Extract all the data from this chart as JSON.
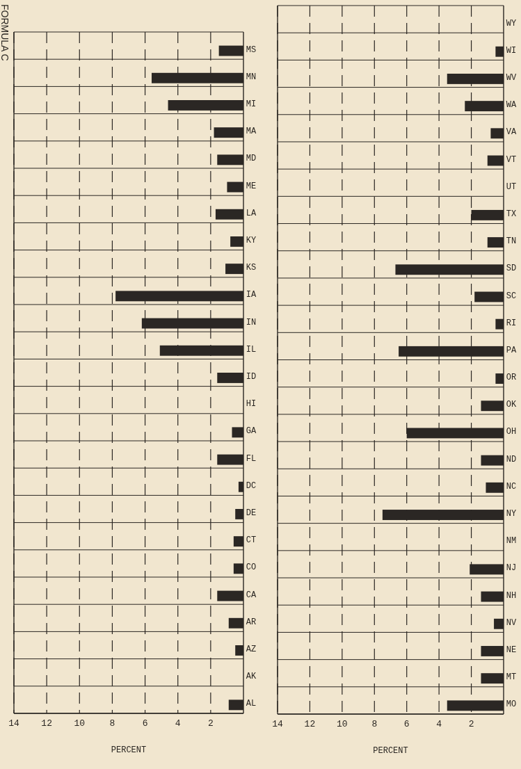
{
  "chart_data": [
    {
      "type": "bar",
      "title": "FORMULA C",
      "orientation": "horizontal",
      "xlabel": "PERCENT",
      "color": "#2b2724",
      "grid": "x",
      "xlim": [
        14,
        0
      ],
      "xticks": [
        14,
        12,
        10,
        8,
        6,
        4,
        2
      ],
      "categories": [
        "MS",
        "MN",
        "MI",
        "MA",
        "MD",
        "ME",
        "LA",
        "KY",
        "KS",
        "IA",
        "IN",
        "IL",
        "ID",
        "HI",
        "GA",
        "FL",
        "DC",
        "DE",
        "CT",
        "CO",
        "CA",
        "AR",
        "AZ",
        "AK",
        "AL"
      ],
      "values": [
        1.5,
        5.6,
        4.6,
        1.8,
        1.6,
        1.0,
        1.7,
        0.8,
        1.1,
        7.8,
        6.2,
        5.1,
        1.6,
        0,
        0.7,
        1.6,
        0.3,
        0.5,
        0.6,
        0.6,
        1.6,
        0.9,
        0.5,
        0,
        0.9
      ]
    },
    {
      "type": "bar",
      "orientation": "horizontal",
      "xlabel": "PERCENT",
      "color": "#2b2724",
      "grid": "x",
      "xlim": [
        14,
        0
      ],
      "xticks": [
        14,
        12,
        10,
        8,
        6,
        4,
        2
      ],
      "categories": [
        "WY",
        "WI",
        "WV",
        "WA",
        "VA",
        "VT",
        "UT",
        "TX",
        "TN",
        "SD",
        "SC",
        "RI",
        "PA",
        "OR",
        "OK",
        "OH",
        "ND",
        "NC",
        "NY",
        "NM",
        "NJ",
        "NH",
        "NV",
        "NE",
        "MT",
        "MO"
      ],
      "values": [
        0,
        0.5,
        3.5,
        2.4,
        0.8,
        1.0,
        0,
        2.0,
        1.0,
        6.7,
        1.8,
        0.5,
        6.5,
        0.5,
        1.4,
        6.0,
        1.4,
        1.1,
        7.5,
        0,
        2.1,
        1.4,
        0.6,
        1.4,
        1.4,
        3.5
      ]
    }
  ]
}
